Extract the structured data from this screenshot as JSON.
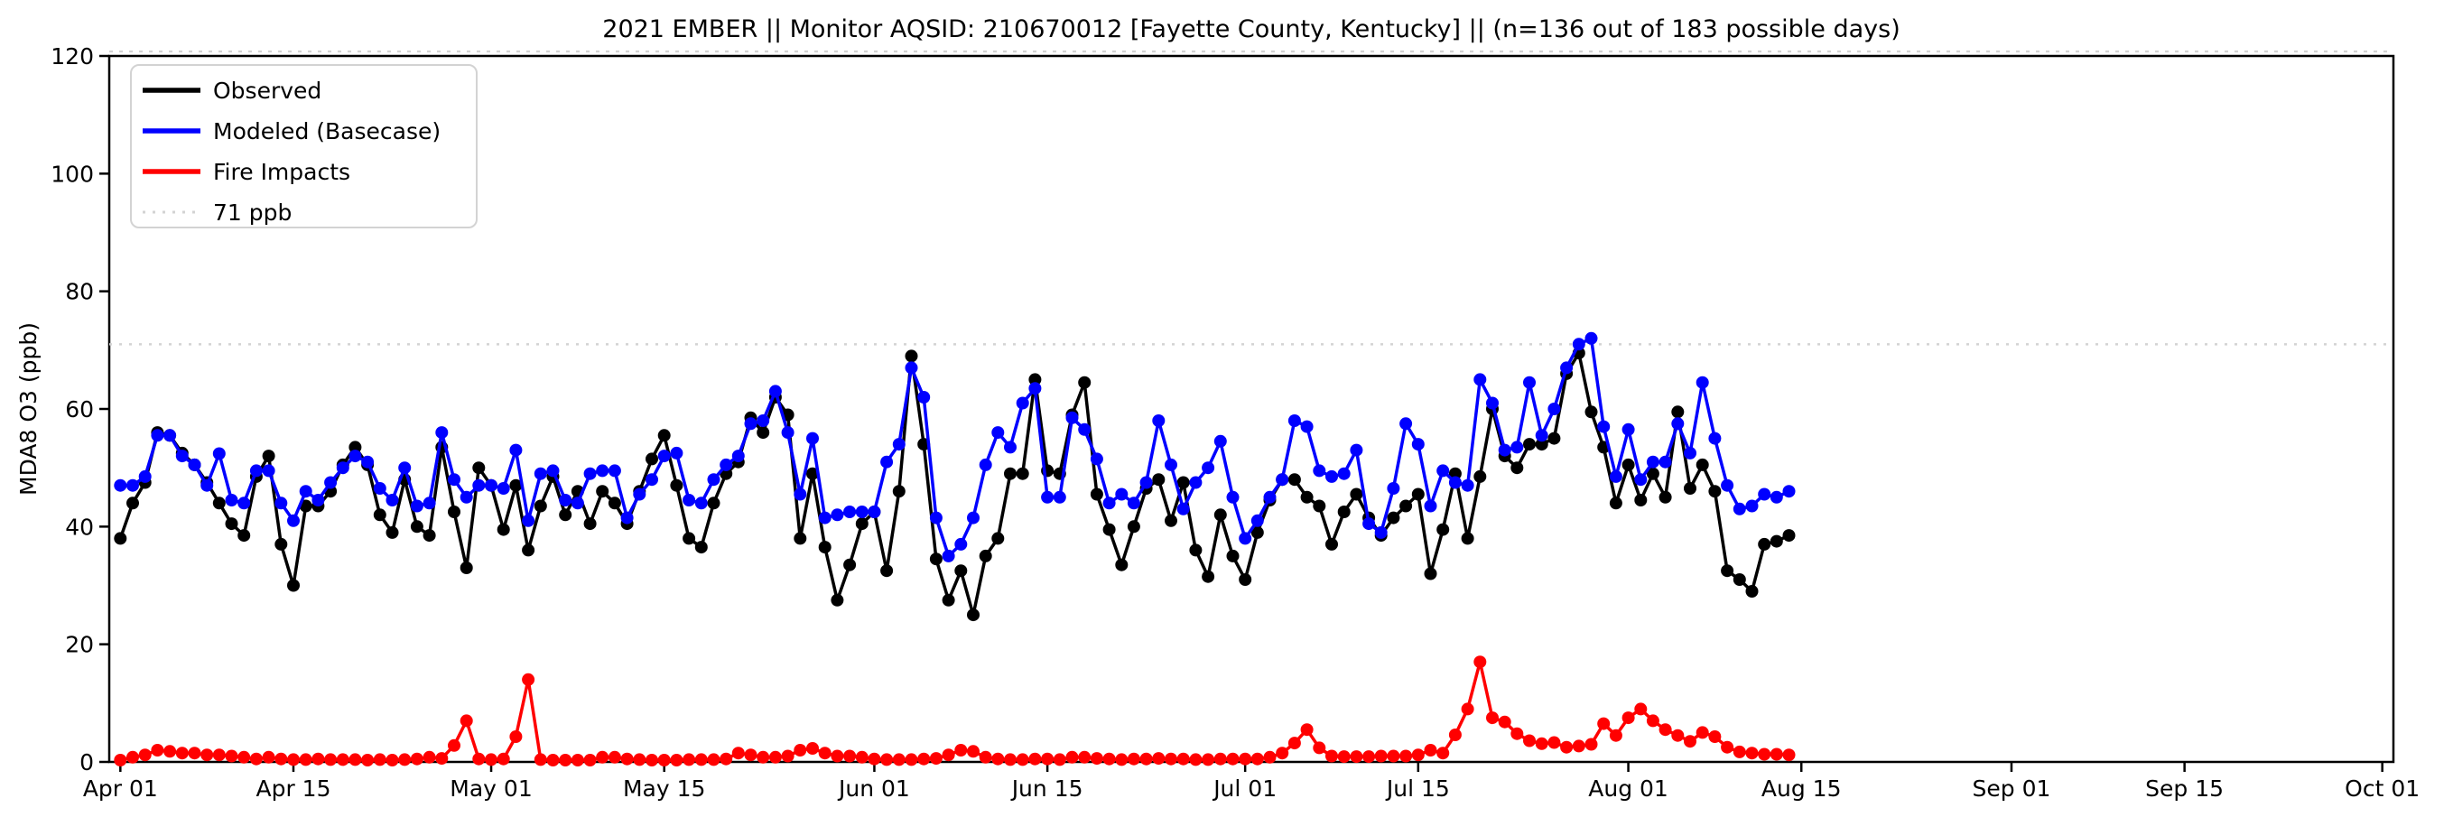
{
  "figure": {
    "title": "2021 EMBER || Monitor AQSID: 210670012 [Fayette County, Kentucky] || (n=136 out of 183 possible days)"
  },
  "legend": {
    "observed": "Observed",
    "modeled": "Modeled (Basecase)",
    "fire": "Fire Impacts",
    "threshold": "71 ppb"
  },
  "colors": {
    "observed": "#000000",
    "modeled": "#0000ff",
    "fire": "#ff0000",
    "threshold": "#d3d3d3",
    "axis": "#000000"
  },
  "chart_data": {
    "type": "line",
    "title": "2021 EMBER || Monitor AQSID: 210670012 [Fayette County, Kentucky] || (n=136 out of 183 possible days)",
    "xlabel": "",
    "ylabel": "MDA8 O3 (ppb)",
    "ylim": [
      0,
      120
    ],
    "y_ticks": [
      0,
      20,
      40,
      60,
      80,
      100,
      120
    ],
    "x_range_days": 183,
    "x_ticks": [
      {
        "label": "Apr 01",
        "day": 0
      },
      {
        "label": "Apr 15",
        "day": 14
      },
      {
        "label": "May 01",
        "day": 30
      },
      {
        "label": "May 15",
        "day": 44
      },
      {
        "label": "Jun 01",
        "day": 61
      },
      {
        "label": "Jun 15",
        "day": 75
      },
      {
        "label": "Jul 01",
        "day": 91
      },
      {
        "label": "Jul 15",
        "day": 105
      },
      {
        "label": "Aug 01",
        "day": 122
      },
      {
        "label": "Aug 15",
        "day": 136
      },
      {
        "label": "Sep 01",
        "day": 153
      },
      {
        "label": "Sep 15",
        "day": 167
      },
      {
        "label": "Oct 01",
        "day": 183
      }
    ],
    "start_date": "2021-04-01",
    "last_data_date": "2021-08-14",
    "n_points": 136,
    "grid": false,
    "legend_position": "upper left",
    "threshold": {
      "value": 71,
      "label": "71 ppb",
      "color": "#d3d3d3",
      "style": "dotted"
    },
    "series": [
      {
        "name": "Observed",
        "color": "#000000",
        "marker": "circle",
        "values": [
          38,
          44,
          47.5,
          56,
          55.5,
          52.5,
          50.5,
          47.5,
          44,
          40.5,
          38.5,
          48.5,
          52,
          37,
          30,
          43.5,
          43.5,
          46,
          50.5,
          53.5,
          50.5,
          42,
          39,
          48,
          40,
          38.5,
          53.5,
          42.5,
          33,
          50,
          47,
          39.5,
          47,
          36,
          43.5,
          48.5,
          42,
          46,
          40.5,
          46,
          44,
          40.5,
          46,
          51.5,
          55.5,
          47,
          38,
          36.5,
          44,
          49,
          51,
          58.5,
          56,
          62,
          59,
          38,
          49,
          36.5,
          27.5,
          33.5,
          40.5,
          42.5,
          32.5,
          46,
          69,
          54,
          34.5,
          27.5,
          32.5,
          25,
          35,
          38,
          49,
          49,
          65,
          49.5,
          49,
          59,
          64.5,
          45.5,
          39.5,
          33.5,
          40,
          46.5,
          48,
          41,
          47.5,
          36,
          31.5,
          42,
          35,
          31,
          39,
          44.5,
          48,
          48,
          45,
          43.5,
          37,
          42.5,
          45.5,
          41.5,
          38.5,
          41.5,
          43.5,
          45.5,
          32,
          39.5,
          49,
          38,
          48.5,
          60,
          52,
          50,
          54,
          54,
          55,
          66,
          69.5,
          59.5,
          53.5,
          44,
          50.5,
          44.5,
          49,
          45,
          59.5,
          46.5,
          50.5,
          46,
          32.5,
          31,
          29,
          37,
          37.5,
          38.5
        ]
      },
      {
        "name": "Modeled (Basecase)",
        "color": "#0000ff",
        "marker": "circle",
        "values": [
          47,
          47,
          48.5,
          55.5,
          55.5,
          52,
          50.5,
          47,
          52.4,
          44.5,
          44,
          49.5,
          49.5,
          44,
          41,
          46,
          44.5,
          47.5,
          50,
          52,
          51,
          46.5,
          44.5,
          50,
          43.5,
          44,
          56,
          48,
          45,
          47,
          47,
          46.5,
          53,
          41,
          49,
          49.5,
          44.5,
          44,
          49,
          49.5,
          49.5,
          41.5,
          45.5,
          48,
          52,
          52.5,
          44.5,
          44,
          48,
          50.5,
          52,
          57.5,
          58,
          63,
          56,
          45.5,
          55,
          41.5,
          42,
          42.5,
          42.5,
          42.5,
          51,
          54,
          67,
          62,
          41.5,
          35,
          37,
          41.5,
          50.5,
          56,
          53.5,
          61,
          63.5,
          45,
          45,
          58.5,
          56.5,
          51.5,
          44,
          45.5,
          44,
          47.5,
          58,
          50.5,
          43,
          47.5,
          50,
          54.5,
          45,
          38,
          41,
          45,
          48,
          58,
          57,
          49.5,
          48.5,
          49,
          53,
          40.5,
          39,
          46.5,
          57.5,
          54,
          43.5,
          49.5,
          47.5,
          47,
          65,
          61,
          53,
          53.5,
          64.5,
          55.5,
          60,
          67,
          71,
          72,
          57,
          48.5,
          56.5,
          48,
          51,
          51,
          57.5,
          52.5,
          64.5,
          55,
          47,
          43,
          43.5,
          45.5,
          45,
          46
        ]
      },
      {
        "name": "Fire Impacts",
        "color": "#ff0000",
        "marker": "circle",
        "values": [
          0.3,
          0.8,
          1.2,
          2,
          1.8,
          1.5,
          1.5,
          1.2,
          1.2,
          1,
          0.8,
          0.5,
          0.8,
          0.5,
          0.4,
          0.4,
          0.5,
          0.4,
          0.4,
          0.4,
          0.3,
          0.4,
          0.3,
          0.4,
          0.5,
          0.8,
          0.6,
          2.8,
          7,
          0.5,
          0.4,
          0.5,
          4.3,
          14,
          0.4,
          0.3,
          0.3,
          0.3,
          0.3,
          0.8,
          0.8,
          0.5,
          0.4,
          0.3,
          0.3,
          0.3,
          0.4,
          0.4,
          0.4,
          0.5,
          1.5,
          1.2,
          0.8,
          0.8,
          1,
          2,
          2.3,
          1.5,
          1,
          1,
          0.8,
          0.5,
          0.4,
          0.4,
          0.4,
          0.5,
          0.6,
          1.2,
          2,
          1.8,
          0.8,
          0.5,
          0.4,
          0.4,
          0.5,
          0.5,
          0.4,
          0.8,
          0.8,
          0.6,
          0.5,
          0.4,
          0.5,
          0.5,
          0.6,
          0.5,
          0.5,
          0.4,
          0.4,
          0.5,
          0.5,
          0.5,
          0.5,
          0.8,
          1.5,
          3.2,
          5.5,
          2.4,
          1,
          0.9,
          0.9,
          0.9,
          1,
          1,
          1,
          1.2,
          2,
          1.5,
          4.6,
          9,
          17,
          7.5,
          6.8,
          4.8,
          3.6,
          3.1,
          3.3,
          2.5,
          2.7,
          3,
          6.5,
          4.5,
          7.5,
          9,
          7,
          5.5,
          4.5,
          3.5,
          5,
          4.3,
          2.5,
          1.7,
          1.5,
          1.3,
          1.3,
          1.2
        ]
      }
    ]
  }
}
